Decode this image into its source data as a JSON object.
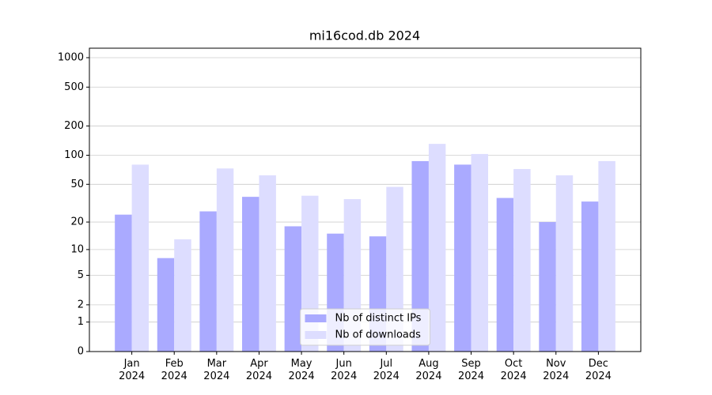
{
  "chart_data": {
    "type": "bar",
    "title": "mi16cod.db 2024",
    "categories": [
      "Jan\n2024",
      "Feb\n2024",
      "Mar\n2024",
      "Apr\n2024",
      "May\n2024",
      "Jun\n2024",
      "Jul\n2024",
      "Aug\n2024",
      "Sep\n2024",
      "Oct\n2024",
      "Nov\n2024",
      "Dec\n2024"
    ],
    "series": [
      {
        "name": "Nb of distinct IPs",
        "color": "#aaaaff",
        "values": [
          24,
          8,
          26,
          37,
          18,
          15,
          14,
          87,
          80,
          36,
          20,
          33
        ]
      },
      {
        "name": "Nb of downloads",
        "color": "#ddddff",
        "values": [
          80,
          13,
          73,
          62,
          38,
          35,
          47,
          131,
          103,
          72,
          62,
          87
        ]
      }
    ],
    "yscale": "symlog",
    "ylim": [
      0,
      1250
    ],
    "yticks": [
      0,
      1,
      2,
      5,
      10,
      20,
      50,
      100,
      200,
      500,
      1000
    ],
    "grid": true,
    "legend": "lower center"
  }
}
